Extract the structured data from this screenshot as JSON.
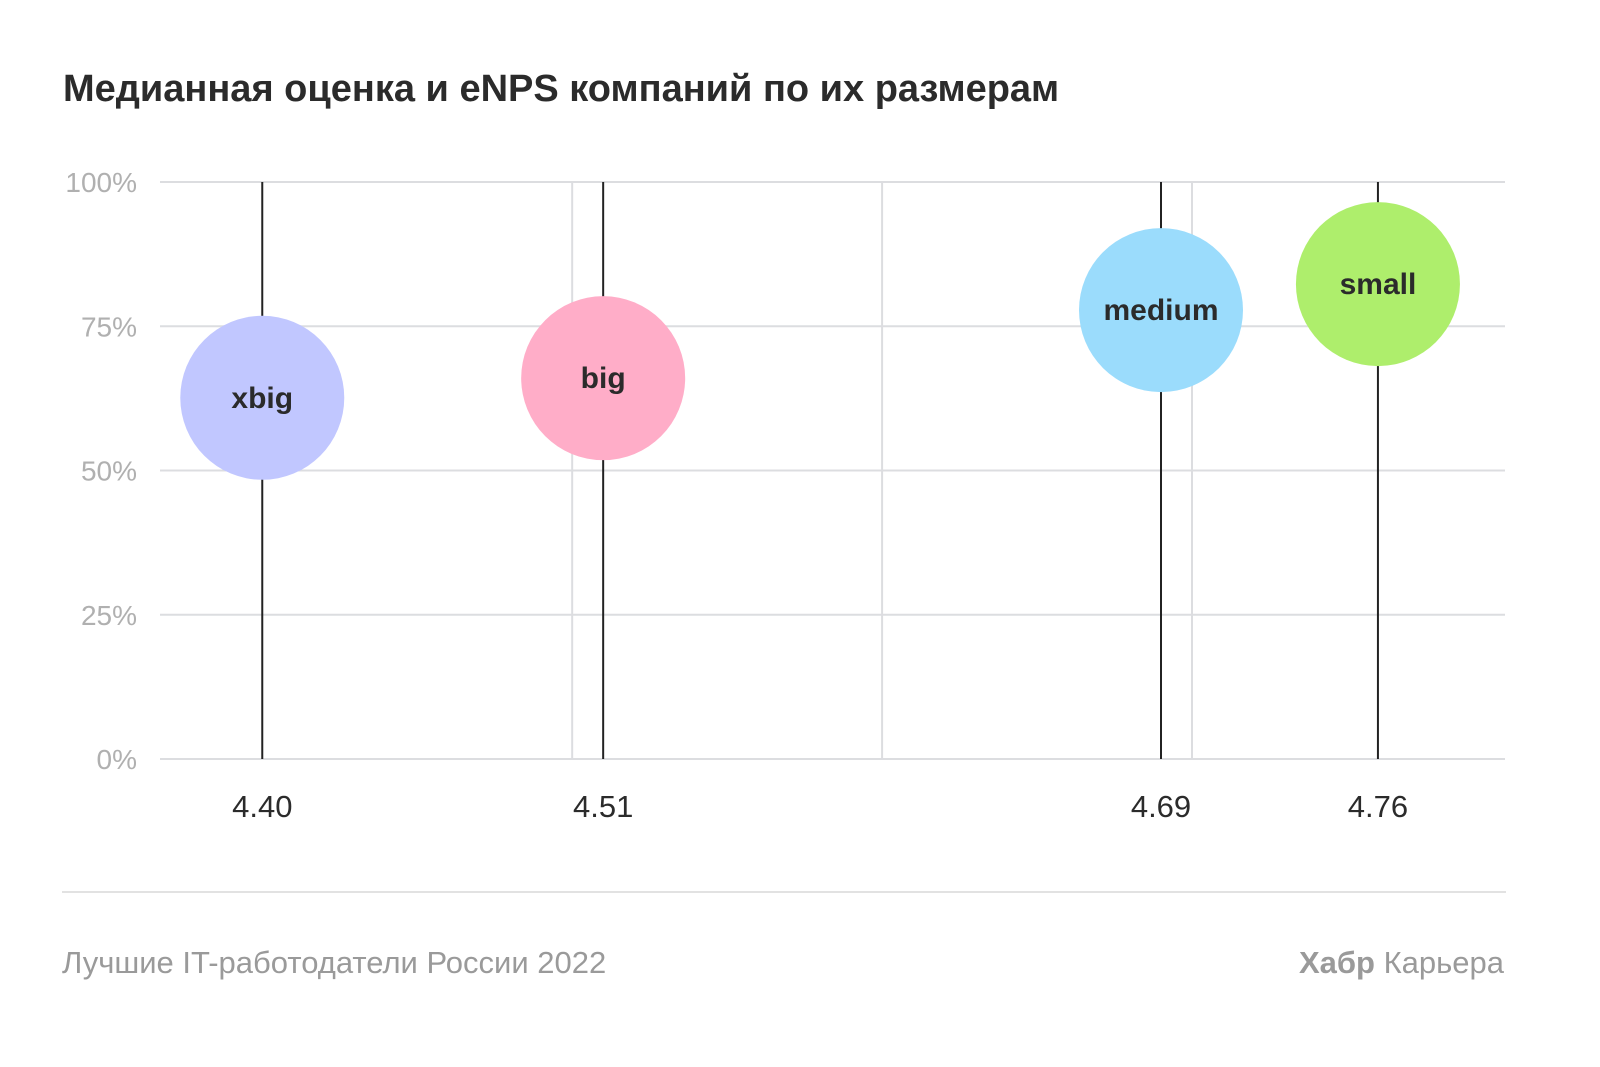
{
  "chart_data": {
    "type": "scatter",
    "title": "Медианная оценка и eNPS компаний по их размерам",
    "xlabel": "",
    "ylabel": "",
    "xlim": [
      4.367,
      4.801
    ],
    "ylim": [
      0,
      100
    ],
    "x_gridlines": [
      4.5,
      4.6,
      4.7
    ],
    "y_ticks": [
      0,
      25,
      50,
      75,
      100
    ],
    "y_tick_labels": [
      "0%",
      "25%",
      "50%",
      "75%",
      "100%"
    ],
    "grid": true,
    "points": [
      {
        "name": "xbig",
        "x": 4.4,
        "x_label": "4.40",
        "y": 62.6,
        "color": "#c1c7ff"
      },
      {
        "name": "big",
        "x": 4.51,
        "x_label": "4.51",
        "y": 66.0,
        "color": "#ffadc8"
      },
      {
        "name": "medium",
        "x": 4.69,
        "x_label": "4.69",
        "y": 77.8,
        "color": "#9bdcfc"
      },
      {
        "name": "small",
        "x": 4.76,
        "x_label": "4.76",
        "y": 82.3,
        "color": "#aeee6c"
      }
    ]
  },
  "footer": {
    "source": "Лучшие IT-работодатели России 2022",
    "brand_bold": "Хабр",
    "brand_rest": " Карьера"
  }
}
